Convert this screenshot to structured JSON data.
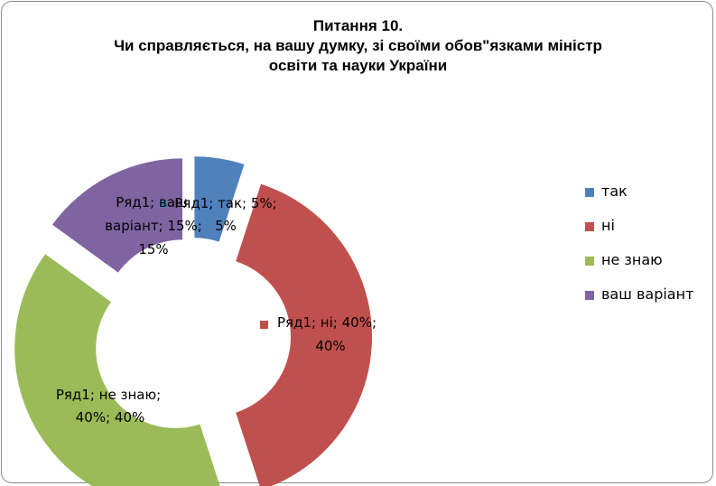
{
  "title_lines": [
    "Питання 10.",
    "Чи справляється,  на вашу думку, зі своїми обов\"язками  міністр",
    "освіти та науки України"
  ],
  "chart_data": {
    "type": "pie",
    "style": "exploded doughnut",
    "title": "Питання 10. Чи справляється,  на вашу думку, зі своїми обов\"язками  міністр освіти та науки України",
    "series_name": "Ряд1",
    "categories": [
      "так",
      "ні",
      "не знаю",
      "ваш варіант"
    ],
    "values": [
      5,
      40,
      40,
      15
    ],
    "colors": [
      "#4f81bd",
      "#c0504d",
      "#9bbb59",
      "#8064a2"
    ],
    "data_labels": [
      [
        "Ряд1; так; 5%;",
        "5%"
      ],
      [
        "Ряд1; ні; 40%;",
        "40%"
      ],
      [
        "Ряд1; не знаю;",
        "40%; 40%"
      ],
      [
        "Ряд1; ваш",
        "варіант; 15%;",
        "15%"
      ]
    ],
    "legend_position": "right"
  }
}
